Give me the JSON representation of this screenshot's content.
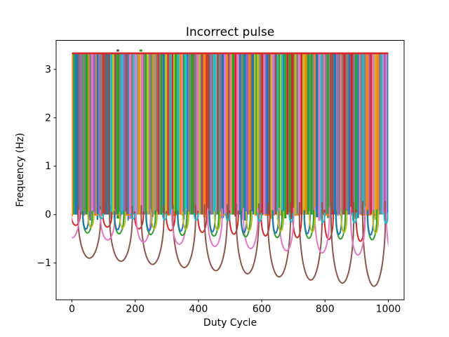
{
  "figure": {
    "title": "Incorrect pulse",
    "background": "#ffffff"
  },
  "chart_data": {
    "type": "line",
    "title": "Incorrect pulse",
    "xlabel": "Duty Cycle",
    "ylabel": "Frequency (Hz)",
    "xlim": [
      -50,
      1050
    ],
    "ylim": [
      -1.76,
      3.6
    ],
    "xticks": [
      0,
      200,
      400,
      600,
      800,
      1000
    ],
    "xtick_labels": [
      "0",
      "200",
      "400",
      "600",
      "800",
      "1000"
    ],
    "yticks": [
      -1,
      0,
      1,
      2,
      3
    ],
    "ytick_labels": [
      "−1",
      "0",
      "1",
      "2",
      "3"
    ],
    "grid": false,
    "legend": null,
    "background": "#ffffff",
    "description": "Dense overlapping pulse/square-wave traces (matplotlib tab10 color cycle) filling the band y=0..3.33 over x=0..1000, with a red rail line at y=3.33 and periodic negative half-sine dips below zero that deepen toward the right.",
    "pulse_band": {
      "x_range": [
        0,
        1000
      ],
      "y_range": [
        0,
        3.333
      ],
      "stripe_count": 240,
      "stripe_seed": 7,
      "stripe_colors": [
        "#1f77b4",
        "#ff7f0e",
        "#2ca02c",
        "#d62728",
        "#9467bd",
        "#8c564b",
        "#e377c2",
        "#7f7f7f",
        "#bcbd22",
        "#17becf"
      ],
      "leading_stripe_colors": [
        "#ff7f0e",
        "#2ca02c",
        "#1f77b4",
        "#8c564b"
      ],
      "top_line": {
        "y": 3.333,
        "color": "#d62728",
        "linewidth": 2.6
      },
      "zero_edge_dashes": {
        "y": 0,
        "count": 24,
        "color": "#ff7f0e"
      },
      "markers_above_top": [
        {
          "x": 145,
          "y": 3.39,
          "color": "#555555"
        },
        {
          "x": 218,
          "y": 3.39,
          "color": "#2ca02c"
        }
      ]
    },
    "dip_series": [
      {
        "name": "red",
        "color": "#d62728",
        "period": 100,
        "offset": 12,
        "half_width": 14,
        "depth_start": 0.22,
        "depth_end": 0.55,
        "k_start": 0,
        "k_end": 9
      },
      {
        "name": "brown",
        "color": "#8c564b",
        "period": 100,
        "offset": 55,
        "half_width": 36,
        "depth_start": 0.9,
        "depth_end": 1.48,
        "k_start": 0,
        "k_end": 9
      },
      {
        "name": "pink",
        "color": "#e377c2",
        "period": 113,
        "offset": 0,
        "half_width": 23,
        "depth_start": 0.48,
        "depth_end": 0.88,
        "k_start": 0,
        "k_end": 9
      },
      {
        "name": "green",
        "color": "#2ca02c",
        "period": 100,
        "offset": 49,
        "half_width": 15,
        "depth_start": 0.38,
        "depth_end": 0.52,
        "k_start": 0,
        "k_end": 9
      },
      {
        "name": "blue",
        "color": "#1f77b4",
        "period": 100,
        "offset": 44,
        "half_width": 9,
        "depth_start": 0.3,
        "depth_end": 0.42,
        "k_start": 0,
        "k_end": 9
      },
      {
        "name": "olive",
        "color": "#bcbd22",
        "period": 100,
        "offset": 60,
        "half_width": 9,
        "depth_start": 0.26,
        "depth_end": 0.38,
        "k_start": 0,
        "k_end": 9
      },
      {
        "name": "cyan",
        "color": "#17becf",
        "period": 100,
        "offset": 93,
        "half_width": 6,
        "depth_start": 0.08,
        "depth_end": 0.18,
        "k_start": 0,
        "k_end": 9
      }
    ],
    "line_width": 2,
    "spine_color": "#000000"
  }
}
